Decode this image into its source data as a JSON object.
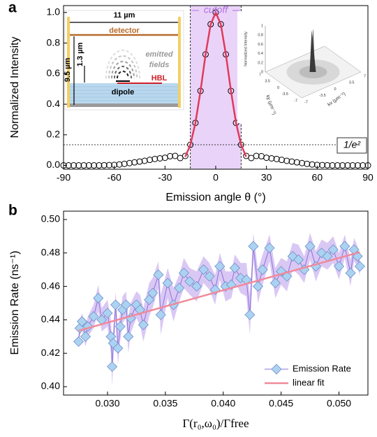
{
  "chart_data": [
    {
      "type": "line",
      "panel_label": "a",
      "x_label": "Emission angle θ (°)",
      "y_label": "Normalized Intensity",
      "xlim": [
        -90,
        90
      ],
      "ylim": [
        -0.025,
        1.045
      ],
      "xticks": [
        -90,
        -60,
        -30,
        0,
        30,
        60,
        90
      ],
      "yticks": [
        {
          "value": 0,
          "label": "0.0"
        },
        0.2,
        0.4,
        0.6,
        0.8,
        {
          "value": 1,
          "label": "1.0"
        }
      ],
      "cutoff_label": "cutoff",
      "cutoff_range": [
        -15,
        15
      ],
      "cutoff_color": "#ead3f8",
      "threshold_label": "1/e²",
      "threshold": 0.135,
      "series": [
        {
          "color": "#000000",
          "marker": "circle",
          "line": false,
          "x": [
            -90,
            -87,
            -84,
            -81,
            -78,
            -75,
            -72,
            -69,
            -66,
            -63,
            -60,
            -57,
            -54,
            -51,
            -48,
            -45,
            -42,
            -39,
            -36,
            -33,
            -30,
            -27,
            -24,
            -21,
            -18,
            -15,
            -12,
            -9,
            -6,
            -3,
            0,
            3,
            6,
            9,
            12,
            15,
            18,
            21,
            24,
            27,
            30,
            33,
            36,
            39,
            42,
            45,
            48,
            51,
            54,
            57,
            60,
            63,
            66,
            69,
            72,
            75,
            78,
            81,
            84,
            87,
            90
          ],
          "values": [
            0,
            0,
            0,
            0,
            0,
            0,
            0,
            0,
            0.001,
            0.002,
            0.003,
            0.006,
            0.01,
            0.015,
            0.02,
            0.025,
            0.03,
            0.036,
            0.042,
            0.046,
            0.05,
            0.06,
            0.062,
            0.048,
            0.062,
            0.135,
            0.278,
            0.487,
            0.726,
            0.923,
            1.0,
            0.923,
            0.726,
            0.487,
            0.278,
            0.135,
            0.062,
            0.048,
            0.062,
            0.06,
            0.05,
            0.046,
            0.042,
            0.036,
            0.03,
            0.025,
            0.02,
            0.015,
            0.01,
            0.006,
            0.003,
            0.002,
            0.001,
            0,
            0,
            0,
            0,
            0,
            0,
            0,
            0
          ]
        },
        {
          "color": "#e03a5c",
          "marker": "none",
          "line": true,
          "x": [
            -18,
            -15,
            -12,
            -9,
            -6,
            -3,
            0,
            3,
            6,
            9,
            12,
            15,
            18
          ],
          "values": [
            0.056,
            0.135,
            0.278,
            0.487,
            0.726,
            0.923,
            1.0,
            0.923,
            0.726,
            0.487,
            0.278,
            0.135,
            0.056
          ]
        }
      ],
      "inset_schematic": {
        "width": "11 µm",
        "detector": "detector",
        "height": "9.5 µm",
        "gap": "1.3 µm",
        "fields": [
          "emitted",
          "fields"
        ],
        "hbl": "HBL",
        "dipole": "dipole"
      },
      "inset_3d": {
        "z_label": "Normalized Intensity",
        "x_label": "kx (μm⁻¹)",
        "y_label": "ky (μm⁻¹)",
        "zticks": [
          0,
          0.2,
          0.4,
          0.6,
          0.8,
          1
        ],
        "xticks": [
          -7,
          -3.5,
          0,
          3.5,
          7
        ],
        "yticks": [
          7,
          3.5,
          0,
          -3.5,
          -7
        ]
      }
    },
    {
      "type": "line",
      "panel_label": "b",
      "x_label": "Γ(r₀,ω₀)/Γfree",
      "y_label": "Emission Rate (ns⁻¹)",
      "xlim": [
        0.0262,
        0.0525
      ],
      "ylim": [
        0.395,
        0.505
      ],
      "xticks": [
        {
          "value": 0.03,
          "label": "0.030"
        },
        0.035,
        {
          "value": 0.04,
          "label": "0.040"
        },
        0.045,
        {
          "value": 0.05,
          "label": "0.050"
        }
      ],
      "yticks": [
        {
          "value": 0.4,
          "label": "0.40"
        },
        0.42,
        0.44,
        0.46,
        0.48,
        {
          "value": 0.5,
          "label": "0.50"
        }
      ],
      "legend": "lower right",
      "band_color": "#dac8f4",
      "series": [
        {
          "name": "Emission Rate",
          "color": "#8a72dc",
          "marker_color": "#acd2f2",
          "marker": "diamond",
          "line": true,
          "x": [
            0.0275,
            0.0276,
            0.0278,
            0.0281,
            0.0283,
            0.0288,
            0.0292,
            0.0295,
            0.03,
            0.0303,
            0.0304,
            0.0305,
            0.0307,
            0.0309,
            0.0311,
            0.0313,
            0.0316,
            0.0318,
            0.032,
            0.0325,
            0.0328,
            0.0331,
            0.0336,
            0.0339,
            0.0344,
            0.0346,
            0.0352,
            0.0357,
            0.0362,
            0.0366,
            0.0371,
            0.0377,
            0.0383,
            0.0388,
            0.0393,
            0.0397,
            0.0402,
            0.0407,
            0.041,
            0.0415,
            0.042,
            0.0423,
            0.0426,
            0.043,
            0.0434,
            0.044,
            0.0445,
            0.045,
            0.0455,
            0.046,
            0.0465,
            0.047,
            0.0475,
            0.048,
            0.0485,
            0.049,
            0.0495,
            0.05,
            0.0505,
            0.051,
            0.0513,
            0.0516,
            0.0518
          ],
          "values": [
            0.427,
            0.435,
            0.439,
            0.43,
            0.436,
            0.442,
            0.453,
            0.44,
            0.444,
            0.43,
            0.412,
            0.426,
            0.449,
            0.423,
            0.436,
            0.446,
            0.449,
            0.43,
            0.441,
            0.449,
            0.446,
            0.437,
            0.452,
            0.456,
            0.467,
            0.443,
            0.462,
            0.449,
            0.459,
            0.468,
            0.463,
            0.46,
            0.47,
            0.466,
            0.458,
            0.472,
            0.46,
            0.461,
            0.471,
            0.465,
            0.464,
            0.443,
            0.484,
            0.46,
            0.47,
            0.483,
            0.462,
            0.469,
            0.466,
            0.478,
            0.476,
            0.47,
            0.484,
            0.472,
            0.48,
            0.478,
            0.482,
            0.472,
            0.484,
            0.468,
            0.482,
            0.478,
            0.472
          ],
          "errors": [
            0.004,
            0.005,
            0.005,
            0.006,
            0.006,
            0.007,
            0.008,
            0.007,
            0.008,
            0.01,
            0.012,
            0.01,
            0.008,
            0.01,
            0.009,
            0.008,
            0.008,
            0.01,
            0.009,
            0.008,
            0.009,
            0.01,
            0.01,
            0.009,
            0.008,
            0.012,
            0.009,
            0.01,
            0.008,
            0.009,
            0.008,
            0.009,
            0.008,
            0.008,
            0.009,
            0.008,
            0.009,
            0.008,
            0.008,
            0.009,
            0.01,
            0.012,
            0.008,
            0.01,
            0.009,
            0.008,
            0.009,
            0.008,
            0.009,
            0.008,
            0.009,
            0.008,
            0.008,
            0.009,
            0.008,
            0.008,
            0.008,
            0.008,
            0.007,
            0.008,
            0.007,
            0.006,
            0.006
          ]
        },
        {
          "name": "linear fit",
          "color": "#f08a9a",
          "marker": "none",
          "line": true,
          "x": [
            0.0275,
            0.0518
          ],
          "values": [
            0.4335,
            0.4805
          ]
        }
      ]
    }
  ]
}
